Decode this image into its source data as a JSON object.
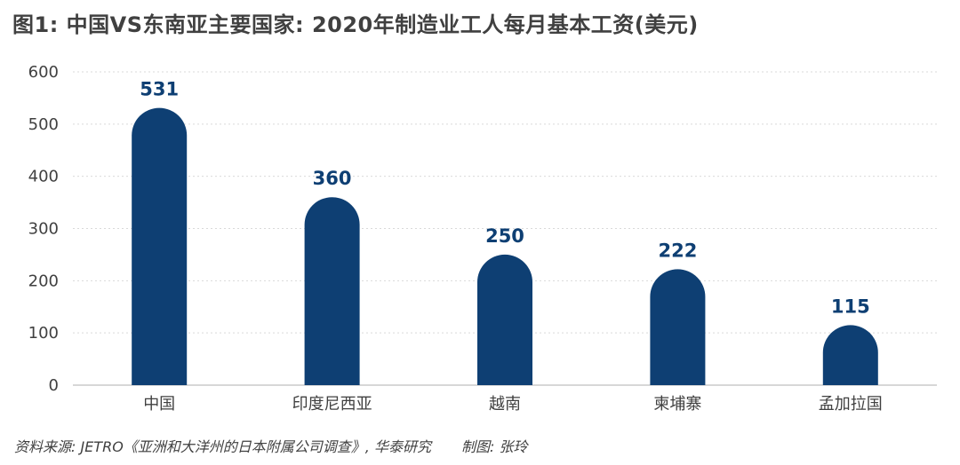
{
  "title": "图1: 中国VS东南亚主要国家: 2020年制造业工人每月基本工资(美元)",
  "source_note": "资料来源: JETRO《亚洲和大洋州的日本附属公司调查》, 华泰研究",
  "author_note": "制图: 张玲",
  "colors": {
    "bar": "#0e3f73",
    "label": "#0e3f73",
    "text": "#404040",
    "grid": "#d9d9d9",
    "axis": "#bfbfbf"
  },
  "chart_data": {
    "type": "bar",
    "title": "图1: 中国VS东南亚主要国家: 2020年制造业工人每月基本工资(美元)",
    "categories": [
      "中国",
      "印度尼西亚",
      "越南",
      "柬埔寨",
      "孟加拉国"
    ],
    "values": [
      531,
      360,
      250,
      222,
      115
    ],
    "xlabel": "",
    "ylabel": "",
    "ylim": [
      0,
      600
    ],
    "yticks": [
      0,
      100,
      200,
      300,
      400,
      500,
      600
    ],
    "grid": "horizontal dotted",
    "legend": "none",
    "data_labels": true
  }
}
